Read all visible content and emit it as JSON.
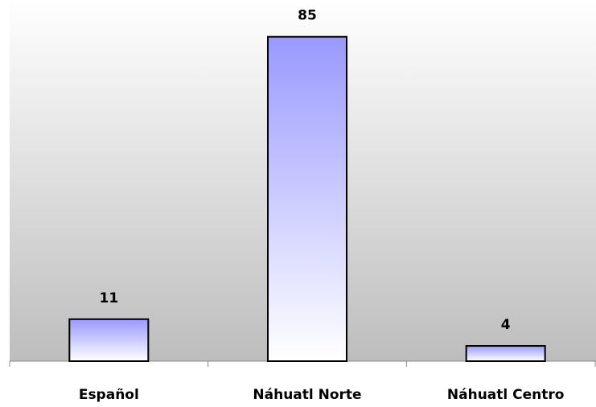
{
  "chart_data": {
    "type": "bar",
    "categories": [
      "Español",
      "Náhuatl Norte",
      "Náhuatl Centro"
    ],
    "values": [
      11,
      85,
      4
    ],
    "color": "#9999ff",
    "ylim": [
      0,
      90
    ]
  }
}
